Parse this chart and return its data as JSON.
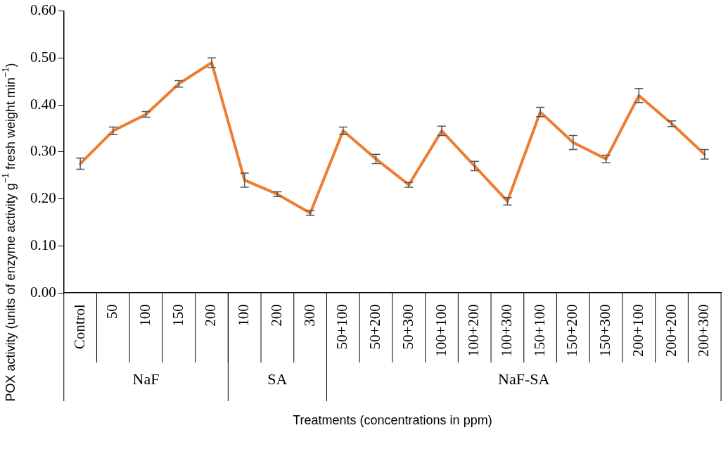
{
  "chart_data": {
    "type": "line",
    "xlabel": "Treatments (concentrations in ppm)",
    "ylabel": "POX activity (units of enzyme activity g$^{−1}$ fresh weight min$^{−1}$)",
    "categories": [
      "Control",
      "50",
      "100",
      "150",
      "200",
      "100",
      "200",
      "300",
      "50+100",
      "50+200",
      "50+300",
      "100+100",
      "100+200",
      "100+300",
      "150+100",
      "150+200",
      "150+300",
      "200+100",
      "200+200",
      "200+300"
    ],
    "series": [
      {
        "color": "#ed7d31",
        "values": [
          0.275,
          0.345,
          0.38,
          0.445,
          0.49,
          0.24,
          0.21,
          0.17,
          0.345,
          0.285,
          0.23,
          0.345,
          0.27,
          0.195,
          0.385,
          0.32,
          0.285,
          0.42,
          0.36,
          0.295
        ],
        "errors": [
          0.012,
          0.008,
          0.006,
          0.007,
          0.01,
          0.015,
          0.005,
          0.005,
          0.008,
          0.01,
          0.005,
          0.01,
          0.01,
          0.008,
          0.01,
          0.015,
          0.008,
          0.015,
          0.006,
          0.01
        ]
      }
    ],
    "annotations": [
      "NaF",
      "SA",
      "NaF-SA"
    ],
    "ylim": [
      0,
      0.6
    ],
    "yticks": [
      {
        "value": 0,
        "label": "0.00"
      },
      {
        "value": 0.1,
        "label": "0.10"
      },
      {
        "value": 0.2,
        "label": "0.20"
      },
      {
        "value": 0.3,
        "label": "0.30"
      },
      {
        "value": 0.4,
        "label": "0.40"
      },
      {
        "value": 0.5,
        "label": "0.50"
      },
      {
        "value": 0.6,
        "label": "0.60"
      }
    ],
    "grid": false,
    "legend": false,
    "line_style": "solid"
  }
}
